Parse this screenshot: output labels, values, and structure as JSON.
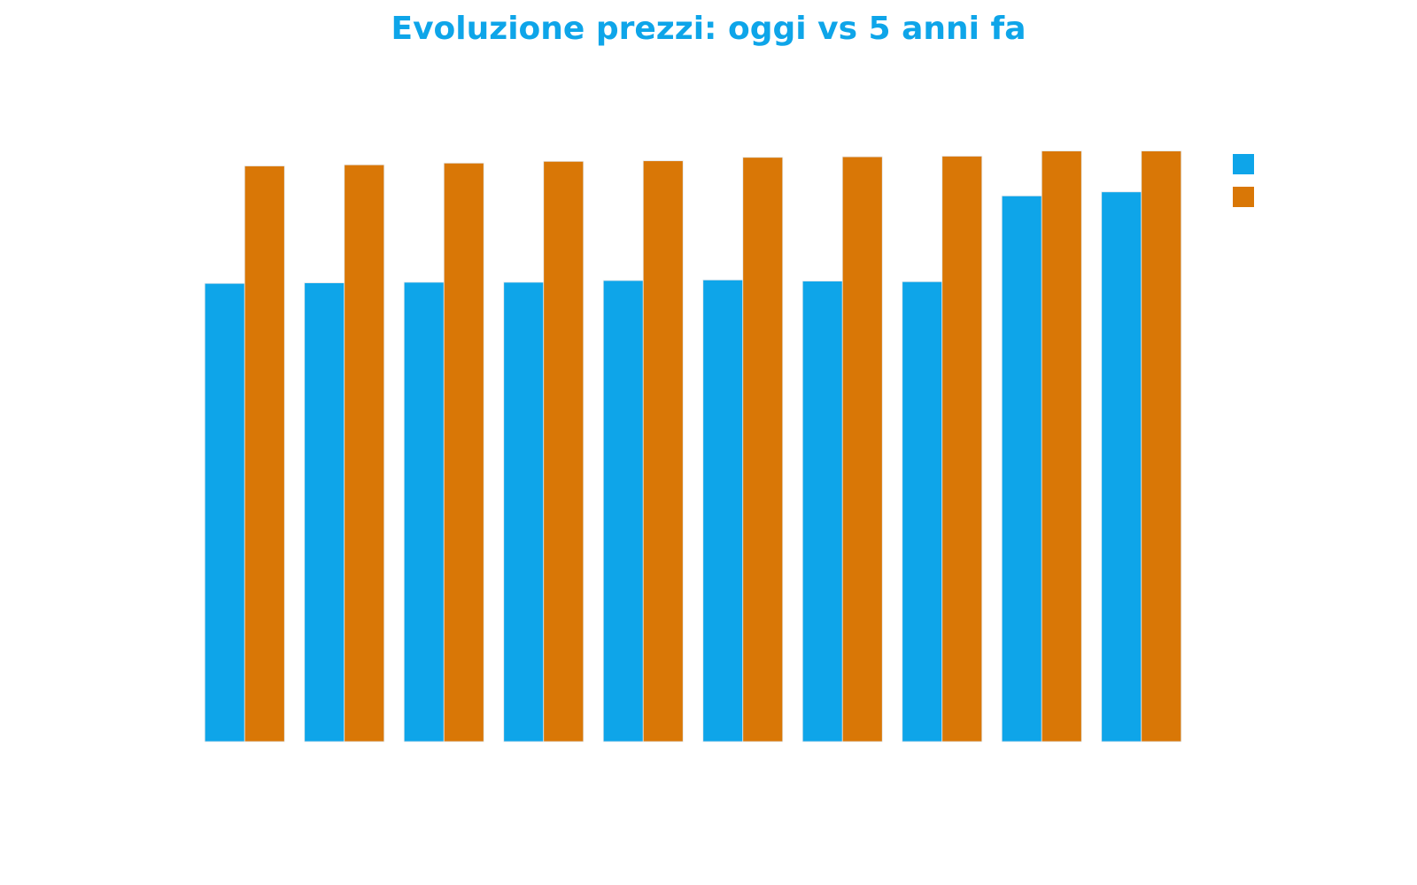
{
  "chart_data": {
    "type": "bar",
    "title": "Evoluzione prezzi: oggi vs 5 anni fa",
    "xlabel": "",
    "ylabel": "",
    "categories": [
      "",
      "",
      "",
      "",
      "",
      "",
      "",
      "",
      "",
      ""
    ],
    "series": [
      {
        "color": "#0EA5E9",
        "values": [
          79.6,
          79.7,
          79.8,
          79.8,
          80.1,
          80.2,
          80.0,
          79.9,
          94.8,
          95.5
        ]
      },
      {
        "color": "#D97706",
        "values": [
          100.0,
          100.2,
          100.5,
          100.8,
          100.9,
          101.5,
          101.6,
          101.7,
          102.6,
          102.6
        ]
      }
    ],
    "ylim": [
      0,
      105
    ],
    "grid": false,
    "legend": "top-right",
    "title_color": "#0EA5E9"
  }
}
